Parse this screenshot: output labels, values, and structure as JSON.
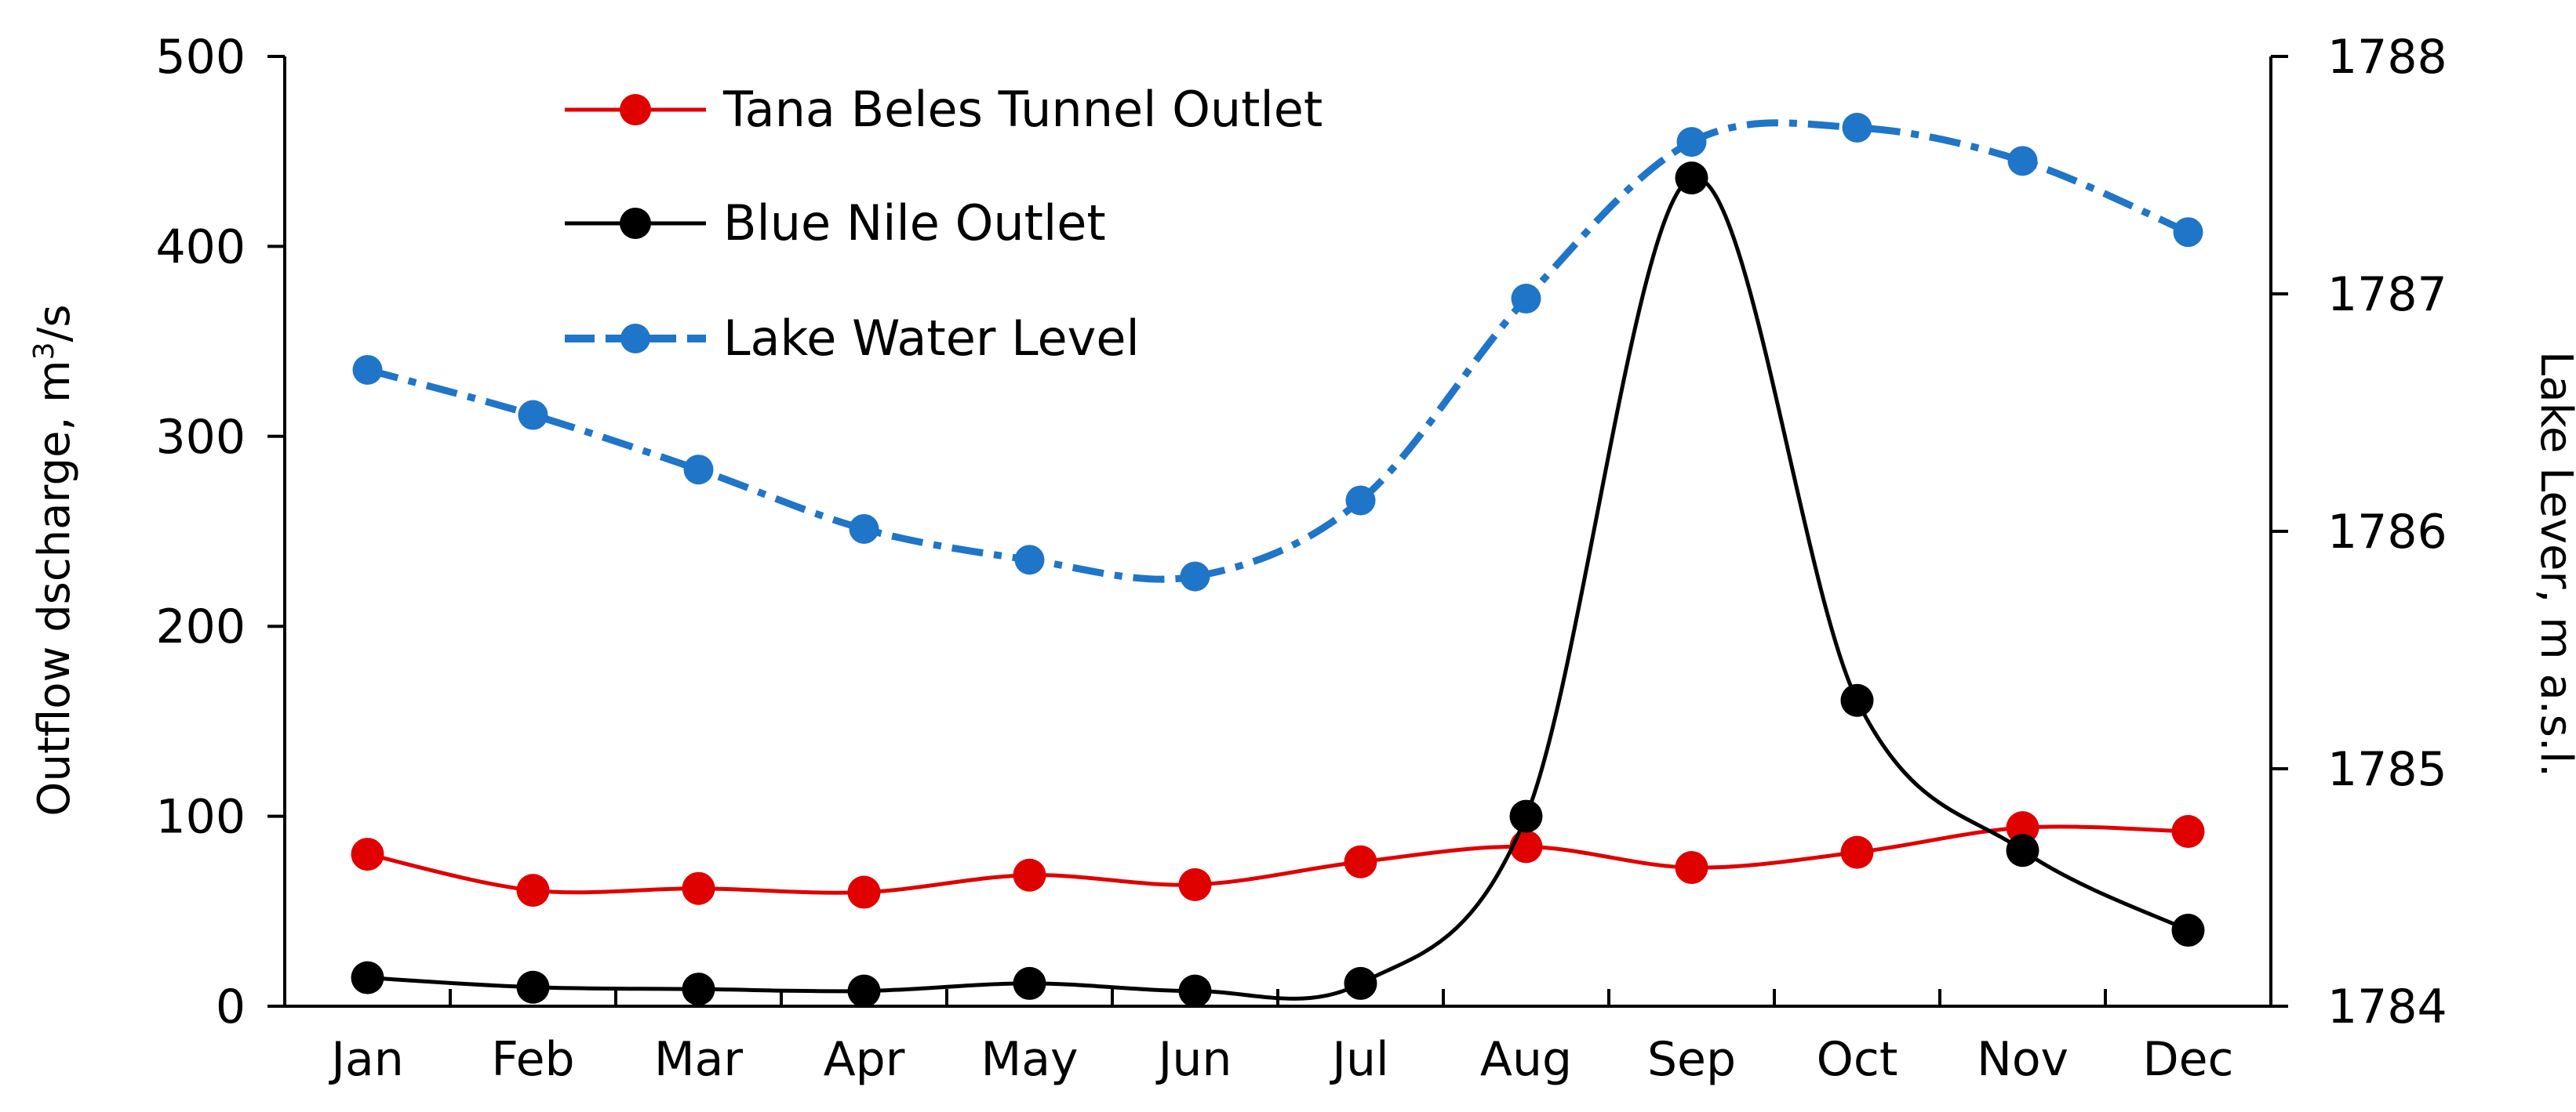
{
  "chart_data": {
    "type": "line",
    "categories": [
      "Jan",
      "Feb",
      "Mar",
      "Apr",
      "May",
      "Jun",
      "Jul",
      "Aug",
      "Sep",
      "Oct",
      "Nov",
      "Dec"
    ],
    "y_left": {
      "label": "Outflow dscharge, m",
      "label_sup": "3",
      "label_suffix": "/s",
      "range": [
        0,
        500
      ],
      "ticks": [
        "0",
        "100",
        "200",
        "300",
        "400",
        "500"
      ]
    },
    "y_right": {
      "label": "Lake Lever, m a.s.l.",
      "range": [
        1784,
        1788
      ],
      "ticks": [
        "1784",
        "1785",
        "1786",
        "1787",
        "1788"
      ]
    },
    "x_positions": [
      0.5,
      1.5,
      2.5,
      3.5,
      4.5,
      5.5,
      6.5,
      7.5,
      8.5,
      9.5,
      10.5,
      11.5
    ],
    "series": [
      {
        "name": "Tana Beles Tunnel Outlet",
        "axis": "left",
        "color": "#e00000",
        "style": "solid",
        "x": [
          0.5,
          1.5,
          2.5,
          3.5,
          4.5,
          5.5,
          6.5,
          7.5,
          8.5,
          9.5,
          10.5,
          11.5
        ],
        "values": [
          80,
          61,
          62,
          60,
          69,
          64,
          76,
          84,
          73,
          81,
          94,
          92
        ]
      },
      {
        "name": "Blue Nile Outlet",
        "axis": "left",
        "color": "#000000",
        "style": "solid",
        "x": [
          0.5,
          1.5,
          2.5,
          3.5,
          4.5,
          5.5,
          6.5,
          7.5,
          8.5,
          9.5,
          10.5,
          11.5
        ],
        "values": [
          15,
          10,
          9,
          8,
          12,
          8,
          12,
          100,
          436,
          161,
          82,
          40
        ]
      },
      {
        "name": "Lake Water Level",
        "axis": "right",
        "color": "#1f75c8",
        "style": "dashdot",
        "x": [
          0.5,
          1.5,
          2.5,
          3.5,
          4.5,
          5.5,
          6.5,
          7.5,
          8.5,
          9.5,
          10.5,
          11.5
        ],
        "values": [
          1786.68,
          1786.49,
          1786.26,
          1786.01,
          1785.88,
          1785.81,
          1786.13,
          1786.98,
          1787.64,
          1787.7,
          1787.56,
          1787.26
        ]
      }
    ],
    "grid": false,
    "legend_position": "top-left"
  }
}
